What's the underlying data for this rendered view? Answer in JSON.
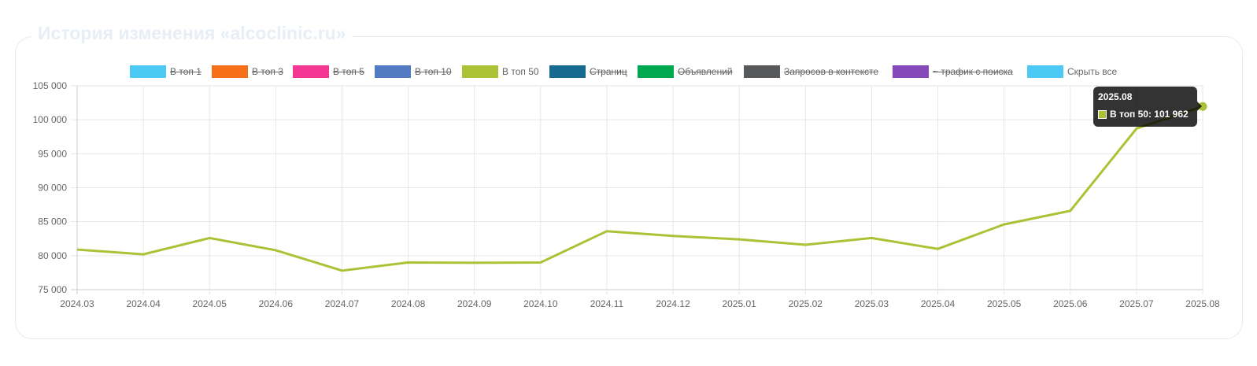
{
  "card": {
    "title": "История изменения «alcoclinic.ru»"
  },
  "legend": [
    {
      "label": "В топ 1",
      "color": "#4dc9f6",
      "hidden": true
    },
    {
      "label": "В топ 3",
      "color": "#f67019",
      "hidden": true
    },
    {
      "label": "В топ 5",
      "color": "#f53794",
      "hidden": true
    },
    {
      "label": "В топ 10",
      "color": "#537bc4",
      "hidden": true
    },
    {
      "label": "В топ 50",
      "color": "#acc236",
      "hidden": false
    },
    {
      "label": "Страниц",
      "color": "#166a8f",
      "hidden": true
    },
    {
      "label": "Объявлений",
      "color": "#00a950",
      "hidden": true
    },
    {
      "label": "Запросов в контексте",
      "color": "#58595b",
      "hidden": true
    },
    {
      "label": "~ трафик с поиска",
      "color": "#8549ba",
      "hidden": true
    },
    {
      "label": "Скрыть все",
      "color": "#4dc9f6",
      "hidden": false
    }
  ],
  "tooltip": {
    "title": "2025.08",
    "body": "В топ 50: 101 962"
  },
  "chart_data": {
    "type": "line",
    "categories": [
      "2024.03",
      "2024.04",
      "2024.05",
      "2024.06",
      "2024.07",
      "2024.08",
      "2024.09",
      "2024.10",
      "2024.11",
      "2024.12",
      "2025.01",
      "2025.02",
      "2025.03",
      "2025.04",
      "2025.05",
      "2025.06",
      "2025.07",
      "2025.08"
    ],
    "series": [
      {
        "name": "В топ 50",
        "color": "#acc236",
        "values": [
          80900,
          80200,
          82600,
          80800,
          77800,
          79000,
          78950,
          79000,
          83600,
          82900,
          82400,
          81600,
          82600,
          81000,
          84600,
          86600,
          98700,
          101962
        ]
      }
    ],
    "ylim": [
      75000,
      105000
    ],
    "yticks": [
      75000,
      80000,
      85000,
      90000,
      95000,
      100000,
      105000
    ],
    "ytick_labels": [
      "75 000",
      "80 000",
      "85 000",
      "90 000",
      "95 000",
      "100 000",
      "105 000"
    ],
    "grid": true,
    "legend_position": "top"
  }
}
